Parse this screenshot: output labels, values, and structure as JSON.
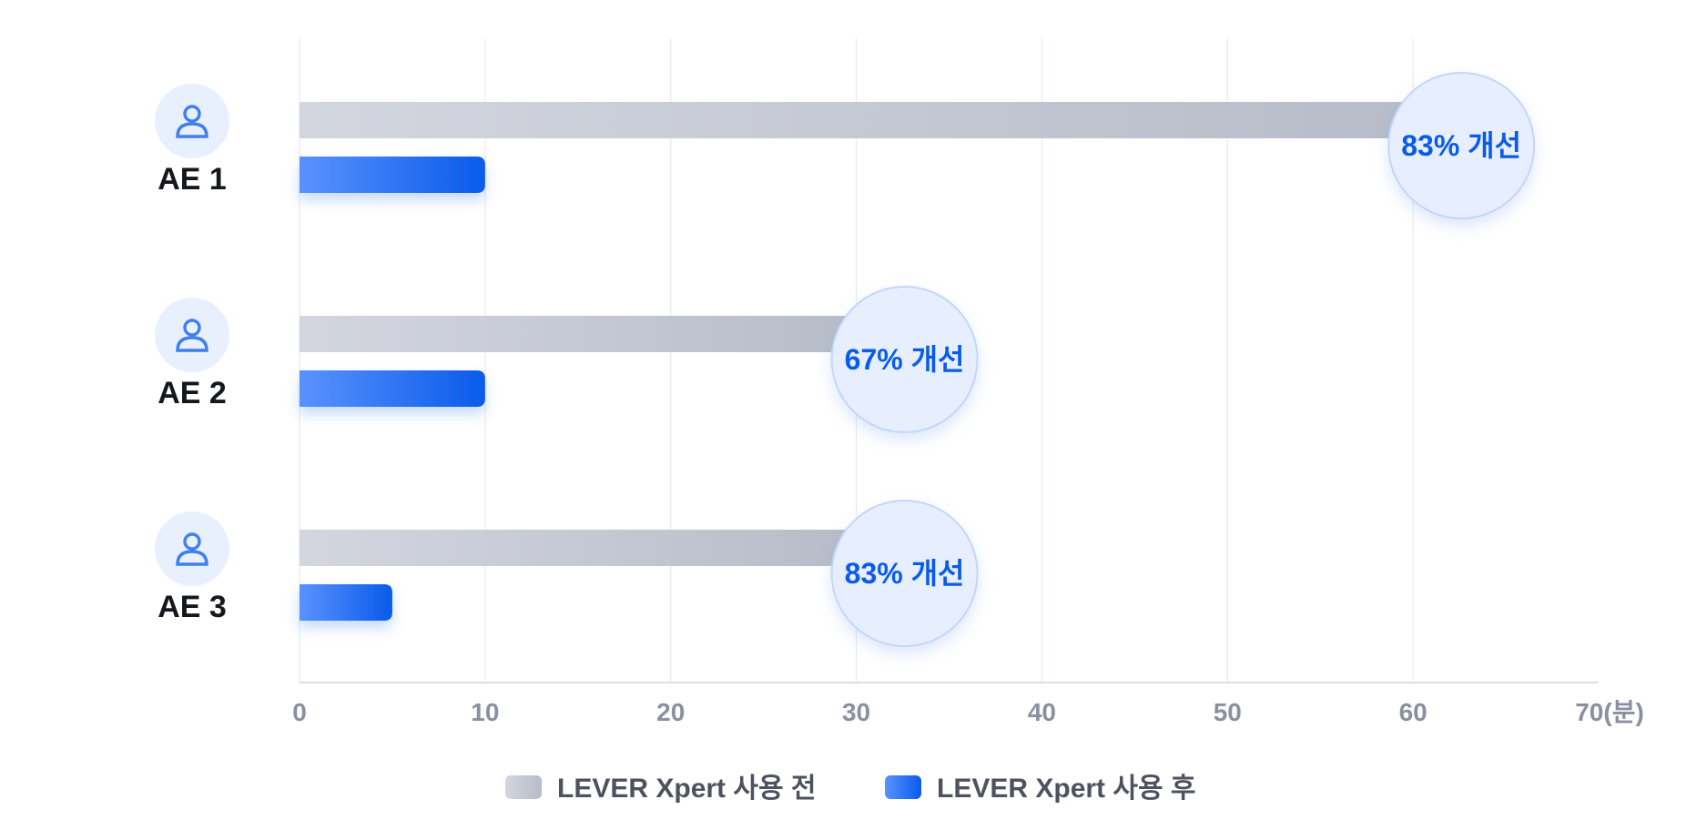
{
  "chart_data": {
    "type": "bar",
    "orientation": "horizontal",
    "categories": [
      "AE 1",
      "AE 2",
      "AE 3"
    ],
    "series": [
      {
        "name": "LEVER Xpert 사용 전",
        "values": [
          60,
          30,
          30
        ],
        "color": "#b7bcc8"
      },
      {
        "name": "LEVER Xpert 사용 후",
        "values": [
          10,
          10,
          5
        ],
        "color": "#0a5bea"
      }
    ],
    "annotations": [
      "83% 개선",
      "67% 개선",
      "83% 개선"
    ],
    "xticks": [
      "0",
      "10",
      "20",
      "30",
      "40",
      "50",
      "60",
      "70(분)"
    ],
    "xlim": [
      0,
      70
    ],
    "grid": true,
    "legend_position": "bottom",
    "category_icon": "user-icon"
  }
}
